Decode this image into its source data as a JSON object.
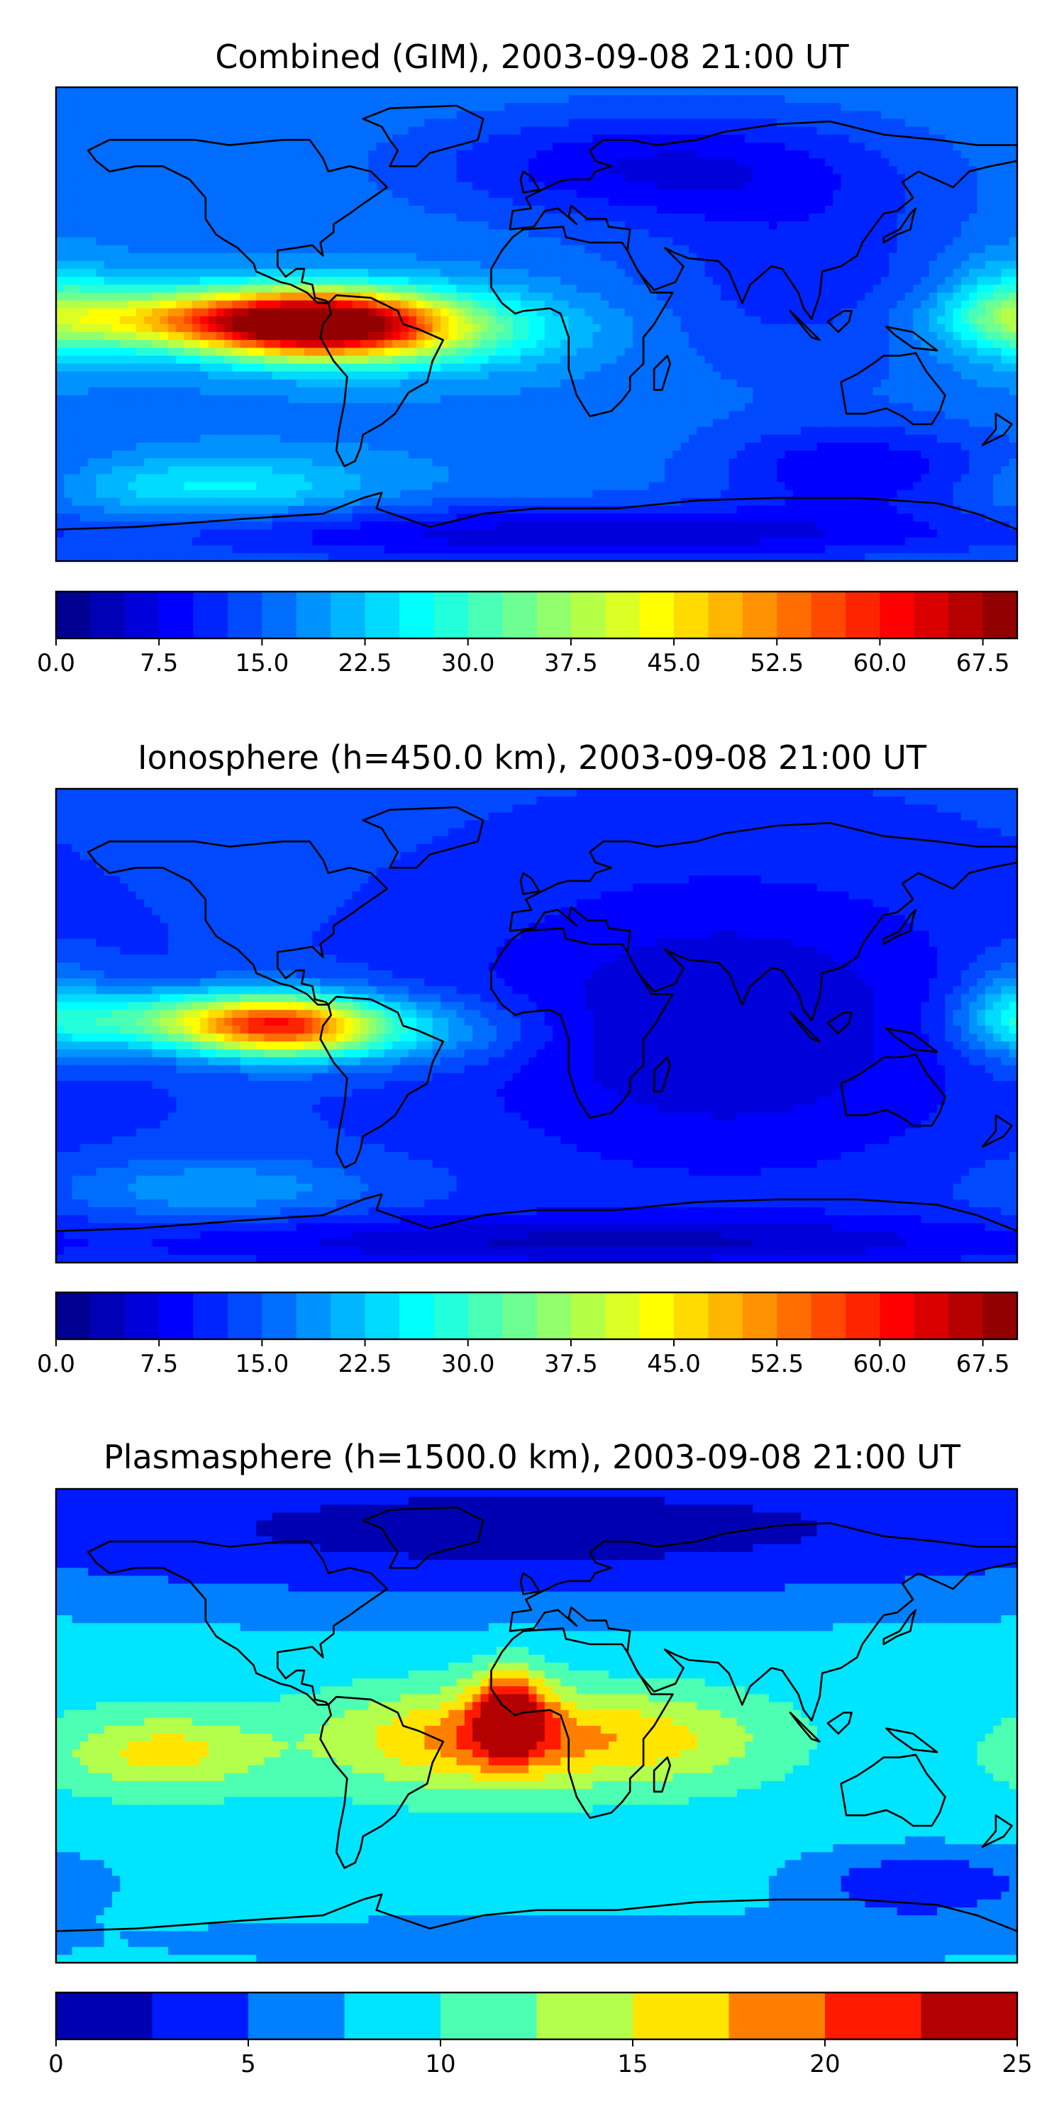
{
  "chart_data": [
    {
      "type": "heatmap",
      "title": "Combined (GIM), 2003-09-08 21:00 UT",
      "field": "map",
      "lon_range": [
        -180,
        180
      ],
      "lat_range": [
        -90,
        90
      ],
      "levels": [
        0,
        2.5,
        5,
        7.5,
        10,
        12.5,
        15,
        17.5,
        20,
        22.5,
        25,
        27.5,
        30,
        32.5,
        35,
        37.5,
        40,
        42.5,
        45,
        47.5,
        50,
        52.5,
        55,
        57.5,
        60,
        62.5,
        65,
        67.5,
        70
      ],
      "colorbar_ticks": [
        "0.0",
        "7.5",
        "15.0",
        "22.5",
        "30.0",
        "37.5",
        "45.0",
        "52.5",
        "60.0",
        "67.5"
      ],
      "background_level": 17,
      "features": [
        {
          "lon": -82,
          "lat": 0,
          "value": 69,
          "sigma_lon": 32,
          "sigma_lat": 9
        },
        {
          "lon": -140,
          "lat": 2,
          "value": 40,
          "sigma_lon": 38,
          "sigma_lat": 8
        },
        {
          "lon": -40,
          "lat": -2,
          "value": 30,
          "sigma_lon": 40,
          "sigma_lat": 10
        },
        {
          "lon": 40,
          "lat": 60,
          "value": 8,
          "sigma_lon": 60,
          "sigma_lat": 15
        },
        {
          "lon": 100,
          "lat": 20,
          "value": 11,
          "sigma_lon": 45,
          "sigma_lat": 30
        },
        {
          "lon": 120,
          "lat": -55,
          "value": 8,
          "sigma_lon": 40,
          "sigma_lat": 12
        },
        {
          "lon": 20,
          "lat": -80,
          "value": 6,
          "sigma_lon": 120,
          "sigma_lat": 8
        },
        {
          "lon": 178,
          "lat": 5,
          "value": 28,
          "sigma_lon": 18,
          "sigma_lat": 14
        },
        {
          "lon": -120,
          "lat": -62,
          "value": 26,
          "sigma_lon": 40,
          "sigma_lat": 8
        }
      ]
    },
    {
      "type": "heatmap",
      "title": "Ionosphere  (h=450.0 km), 2003-09-08 21:00 UT",
      "field": "map",
      "lon_range": [
        -180,
        180
      ],
      "lat_range": [
        -90,
        90
      ],
      "levels": [
        0,
        2.5,
        5,
        7.5,
        10,
        12.5,
        15,
        17.5,
        20,
        22.5,
        25,
        27.5,
        30,
        32.5,
        35,
        37.5,
        40,
        42.5,
        45,
        47.5,
        50,
        52.5,
        55,
        57.5,
        60,
        62.5,
        65,
        67.5,
        70
      ],
      "colorbar_ticks": [
        "0.0",
        "7.5",
        "15.0",
        "22.5",
        "30.0",
        "37.5",
        "45.0",
        "52.5",
        "60.0",
        "67.5"
      ],
      "background_level": 13,
      "features": [
        {
          "lon": -95,
          "lat": 0,
          "value": 55,
          "sigma_lon": 25,
          "sigma_lat": 8
        },
        {
          "lon": -145,
          "lat": 2,
          "value": 30,
          "sigma_lon": 30,
          "sigma_lat": 8
        },
        {
          "lon": -45,
          "lat": -2,
          "value": 22,
          "sigma_lon": 30,
          "sigma_lat": 9
        },
        {
          "lon": 70,
          "lat": 0,
          "value": 5,
          "sigma_lon": 70,
          "sigma_lat": 40
        },
        {
          "lon": 178,
          "lat": 5,
          "value": 22,
          "sigma_lon": 14,
          "sigma_lat": 14
        },
        {
          "lon": -120,
          "lat": -62,
          "value": 20,
          "sigma_lon": 40,
          "sigma_lat": 8
        },
        {
          "lon": 20,
          "lat": -82,
          "value": 5,
          "sigma_lon": 120,
          "sigma_lat": 7
        }
      ]
    },
    {
      "type": "heatmap",
      "title": "Plasmasphere (h=1500.0 km), 2003-09-08 21:00 UT",
      "field": "map",
      "lon_range": [
        -180,
        180
      ],
      "lat_range": [
        -90,
        90
      ],
      "levels": [
        0,
        2.5,
        5,
        7.5,
        10,
        12.5,
        15,
        17.5,
        20,
        22.5,
        25
      ],
      "colorbar_ticks": [
        "0",
        "5",
        "10",
        "15",
        "20",
        "25"
      ],
      "background_level": 9,
      "features": [
        {
          "lon": 0,
          "lat": 75,
          "value": 1.5,
          "sigma_lon": 200,
          "sigma_lat": 22
        },
        {
          "lon": -20,
          "lat": -5,
          "value": 19,
          "sigma_lon": 40,
          "sigma_lat": 13
        },
        {
          "lon": -10,
          "lat": 5,
          "value": 21,
          "sigma_lon": 10,
          "sigma_lat": 12
        },
        {
          "lon": -140,
          "lat": -10,
          "value": 16,
          "sigma_lon": 28,
          "sigma_lat": 10
        },
        {
          "lon": 50,
          "lat": -5,
          "value": 14,
          "sigma_lon": 30,
          "sigma_lat": 12
        },
        {
          "lon": 145,
          "lat": -60,
          "value": 3,
          "sigma_lon": 35,
          "sigma_lat": 10
        },
        {
          "lon": 20,
          "lat": -82,
          "value": 5,
          "sigma_lon": 120,
          "sigma_lat": 7
        }
      ]
    }
  ]
}
